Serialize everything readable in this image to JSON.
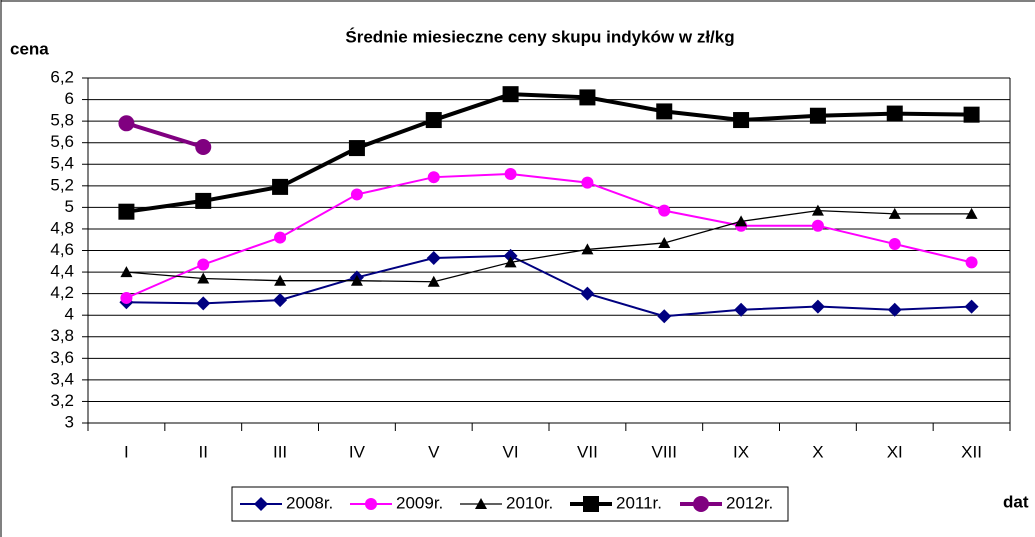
{
  "chart_data": {
    "type": "line",
    "title": "Średnie miesieczne ceny skupu indyków w zł/kg",
    "y_label": "cena",
    "x_label": "dat",
    "categories": [
      "I",
      "II",
      "III",
      "IV",
      "V",
      "VI",
      "VII",
      "VIII",
      "IX",
      "X",
      "XI",
      "XII"
    ],
    "ylim": [
      3,
      6.2
    ],
    "yticks": [
      3,
      {
        "value": 3.2,
        "label": "3,2"
      },
      {
        "value": 3.4,
        "label": "3,4"
      },
      {
        "value": 3.6,
        "label": "3,6"
      },
      {
        "value": 3.8,
        "label": "3,8"
      },
      4,
      {
        "value": 4.2,
        "label": "4,2"
      },
      {
        "value": 4.4,
        "label": "4,4"
      },
      {
        "value": 4.6,
        "label": "4,6"
      },
      {
        "value": 4.8,
        "label": "4,8"
      },
      5,
      {
        "value": 5.2,
        "label": "5,2"
      },
      {
        "value": 5.4,
        "label": "5,4"
      },
      {
        "value": 5.6,
        "label": "5,6"
      },
      {
        "value": 5.8,
        "label": "5,8"
      },
      6,
      {
        "value": 6.2,
        "label": "6,2"
      }
    ],
    "grid": true,
    "series": [
      {
        "name": "2008r.",
        "color": "#000080",
        "marker": "diamond",
        "values": [
          4.12,
          4.11,
          4.14,
          4.35,
          4.53,
          4.55,
          4.2,
          3.99,
          4.05,
          4.08,
          4.05,
          4.08
        ]
      },
      {
        "name": "2009r.",
        "color": "#ff00ff",
        "marker": "circle",
        "values": [
          4.16,
          4.47,
          4.72,
          5.12,
          5.28,
          5.31,
          5.23,
          4.97,
          4.83,
          4.83,
          4.66,
          4.49
        ]
      },
      {
        "name": "2010r.",
        "color": "#000000",
        "marker": "triangle",
        "values": [
          4.4,
          4.34,
          4.32,
          4.32,
          4.31,
          4.49,
          4.61,
          4.67,
          4.87,
          4.97,
          4.94,
          4.94
        ]
      },
      {
        "name": "2011r.",
        "color": "#000000",
        "marker": "square",
        "thick": true,
        "values": [
          4.96,
          5.06,
          5.19,
          5.55,
          5.81,
          6.05,
          6.02,
          5.89,
          5.81,
          5.85,
          5.87,
          5.86
        ]
      },
      {
        "name": "2012r.",
        "color": "#800080",
        "marker": "circle-big",
        "thick": true,
        "values": [
          5.78,
          5.56,
          null,
          null,
          null,
          null,
          null,
          null,
          null,
          null,
          null,
          null
        ]
      }
    ]
  }
}
